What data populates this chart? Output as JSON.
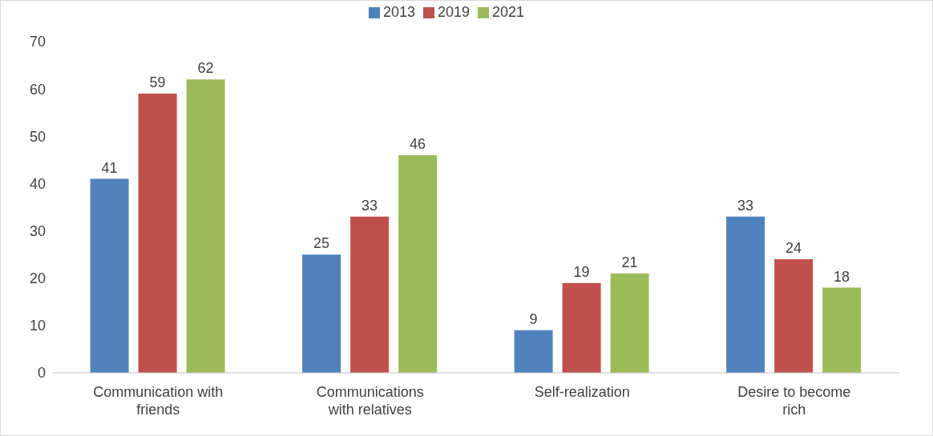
{
  "chart_data": {
    "type": "bar",
    "categories": [
      "Communication with friends",
      "Communications with relatives",
      "Self-realization",
      "Desire to become rich"
    ],
    "series": [
      {
        "name": "2013",
        "color": "#4f81bd",
        "values": [
          41,
          25,
          9,
          33
        ]
      },
      {
        "name": "2019",
        "color": "#c0504d",
        "values": [
          59,
          33,
          19,
          24
        ]
      },
      {
        "name": "2021",
        "color": "#9bbb59",
        "values": [
          62,
          46,
          21,
          18
        ]
      }
    ],
    "ylim": [
      0,
      70
    ],
    "yticks": [
      0,
      10,
      20,
      30,
      40,
      50,
      60,
      70
    ],
    "grid": false,
    "legend": "top",
    "data_labels": true
  }
}
